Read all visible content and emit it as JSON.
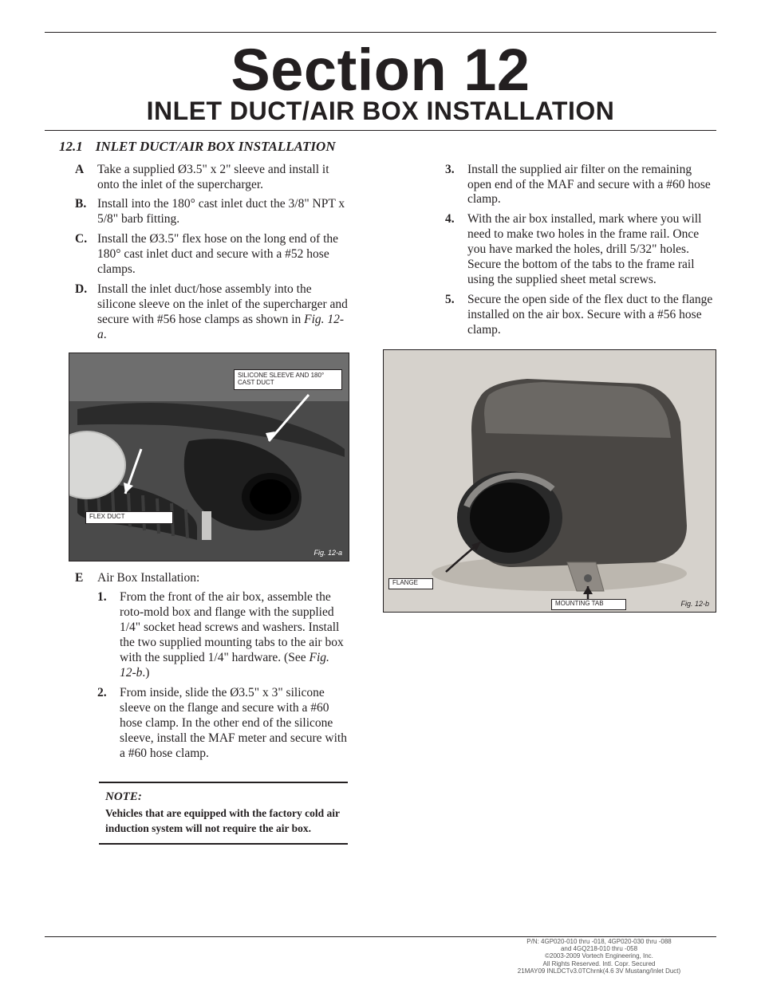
{
  "section": {
    "big": "Section 12",
    "sub": "INLET DUCT/AIR BOX INSTALLATION"
  },
  "subsection": {
    "num": "12.1",
    "title": "INLET DUCT/AIR BOX INSTALLATION"
  },
  "left_items": [
    {
      "letter": "A",
      "text": "Take a supplied Ø3.5\" x 2\" sleeve and install it onto the inlet of the supercharger."
    },
    {
      "letter": "B.",
      "text": "Install into the 180° cast inlet duct the 3/8\" NPT x 5/8\" barb fitting."
    },
    {
      "letter": "C.",
      "text": "Install the Ø3.5\" flex hose on the long end of the 180° cast inlet duct and secure with a #52 hose clamps."
    },
    {
      "letter": "D.",
      "text_html": "Install the inlet duct/hose assembly into the silicone sleeve on the inlet of the super­charger and secure with #56 hose clamps as shown in <em class='figref'>Fig. 12-a</em>."
    }
  ],
  "e_item": {
    "letter": "E",
    "text": "Air Box Installation:"
  },
  "sub_items": [
    {
      "num": "1.",
      "text_html": "From the front of the air box, assemble the roto-mold box and flange with the supplied 1/4\" socket head screws and washers. Install the two supplied mounting tabs to the air box with the supplied 1/4\" hardware. (See <em class='figref'>Fig. 12-b</em>.)"
    },
    {
      "num": "2.",
      "text": "From inside, slide the Ø3.5\" x 3\" sili­cone sleeve on the flange and secure with a #60 hose clamp. In the other end of the silicone sleeve, install the MAF meter and secure with a #60 hose clamp."
    }
  ],
  "right_items": [
    {
      "letter": "3.",
      "text": "Install the supplied air filter on the remaining open end of the MAF and secure with a #60 hose clamp."
    },
    {
      "letter": "4.",
      "text": "With the air box installed, mark where you will need to make two holes in the frame rail. Once you have marked the holes, drill 5/32\" holes. Secure the bot­tom of the tabs to the frame rail using the supplied sheet metal screws."
    },
    {
      "letter": "5.",
      "text": "Secure the open side of the flex duct to the flange installed on the air box. Secure with a #56 hose clamp."
    }
  ],
  "note": {
    "label": "NOTE:",
    "body": "Vehicles that are equipped with the factory cold air induction system will not require the air box."
  },
  "fig_a": {
    "caption": "Fig. 12-a",
    "callout1": "SILICONE SLEEVE AND 180° CAST DUCT",
    "callout2": "FLEX DUCT",
    "bg": "#4a4a4a",
    "shape_fill": "#2b2b2b",
    "highlight": "#9a9a9a",
    "arrow_color": "#ffffff"
  },
  "fig_b": {
    "caption": "Fig. 12-b",
    "callout1": "FLANGE",
    "callout2": "MOUNTING TAB",
    "bg": "#d6d2cc",
    "body_fill": "#4a4744",
    "body_hi": "#6b6864",
    "flange_fill": "#2a2a2a",
    "tab_fill": "#8f8a84",
    "arrow_color": "#231f20"
  },
  "footer": {
    "line1": "P/N: 4GP020-010 thru -018, 4GP020-030 thru -088",
    "line2": "and 4GQ218-010 thru -058",
    "line3": "©2003-2009 Vortech Engineering, Inc.",
    "line4": "All Rights Reserved. Intl. Copr. Secured",
    "line5": "21MAY09 INLDCTv3.0TChrnk(4.6 3V Mustang/Inlet Duct)"
  },
  "colors": {
    "text": "#231f20",
    "rule": "#231f20",
    "bg": "#ffffff"
  }
}
